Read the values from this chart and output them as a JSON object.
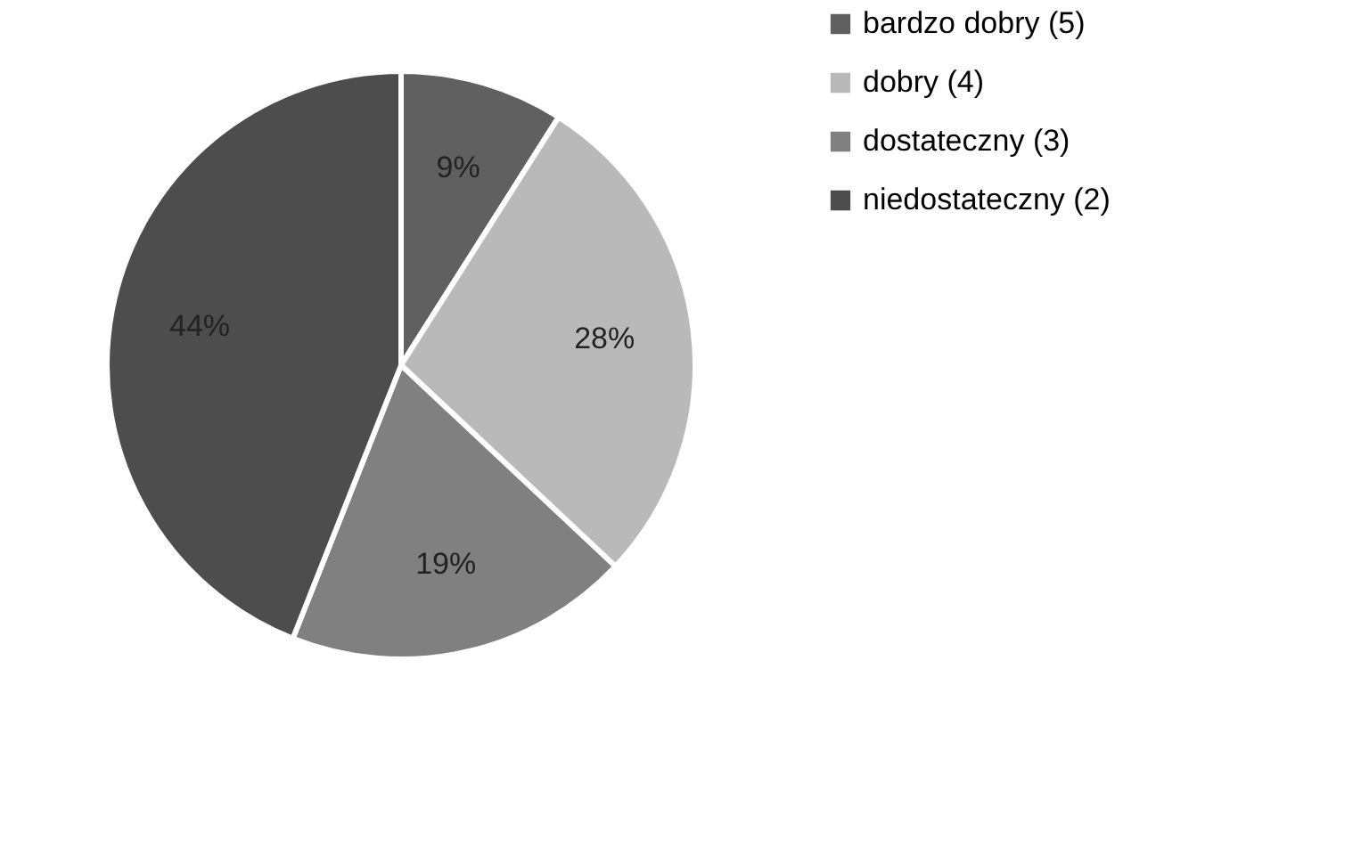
{
  "chart_data": {
    "type": "pie",
    "categories": [
      "bardzo dobry (5)",
      "dobry (4)",
      "dostateczny (3)",
      "niedostateczny (2)"
    ],
    "values": [
      9,
      28,
      19,
      44
    ],
    "colors": [
      "#606060",
      "#b9b9b9",
      "#808080",
      "#4d4d4d"
    ],
    "value_labels": [
      "9%",
      "28%",
      "19%",
      "44%"
    ],
    "legend": "right"
  }
}
